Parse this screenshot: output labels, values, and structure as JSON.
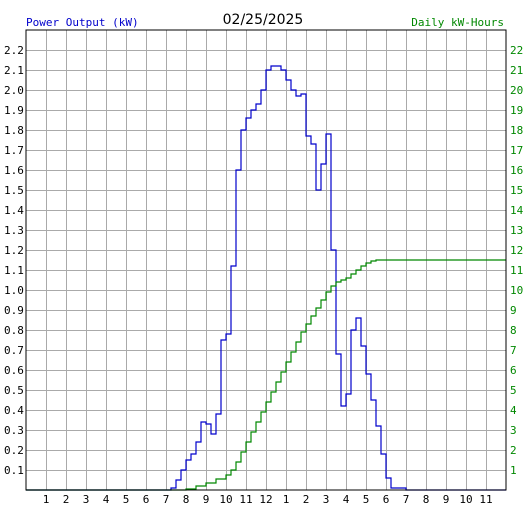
{
  "chart_data": {
    "type": "line",
    "title": "02/25/2025",
    "left_axis_label": "Power Output (kW)",
    "right_axis_label": "Daily kW-Hours",
    "x_tick_labels": [
      "1",
      "2",
      "3",
      "4",
      "5",
      "6",
      "7",
      "8",
      "9",
      "10",
      "11",
      "12",
      "1",
      "2",
      "3",
      "4",
      "5",
      "6",
      "7",
      "8",
      "9",
      "10",
      "11"
    ],
    "y_left_ticks": [
      "0.1",
      "0.2",
      "0.3",
      "0.4",
      "0.5",
      "0.6",
      "0.7",
      "0.8",
      "0.9",
      "1.0",
      "1.1",
      "1.2",
      "1.3",
      "1.4",
      "1.5",
      "1.6",
      "1.7",
      "1.8",
      "1.9",
      "2.0",
      "2.1",
      "2.2"
    ],
    "y_right_ticks": [
      "1",
      "2",
      "3",
      "4",
      "5",
      "6",
      "7",
      "8",
      "9",
      "10",
      "11",
      "12",
      "13",
      "14",
      "15",
      "16",
      "17",
      "18",
      "19",
      "20",
      "21",
      "22"
    ],
    "x_range_hours": [
      0,
      24
    ],
    "y_left_range": [
      0,
      2.3
    ],
    "y_right_range": [
      0,
      23
    ],
    "grid": true,
    "colors": {
      "power": "#0000cc",
      "energy": "#008800",
      "left_label": "#0000cc",
      "right_label": "#008800",
      "grid": "#aaaaaa"
    },
    "series": [
      {
        "key": "power_kw",
        "axis": "left",
        "step": true,
        "points": [
          [
            0,
            0
          ],
          [
            7.0,
            0
          ],
          [
            7.25,
            0.01
          ],
          [
            7.5,
            0.05
          ],
          [
            7.75,
            0.1
          ],
          [
            8.0,
            0.15
          ],
          [
            8.25,
            0.18
          ],
          [
            8.5,
            0.24
          ],
          [
            8.75,
            0.34
          ],
          [
            9.0,
            0.33
          ],
          [
            9.25,
            0.28
          ],
          [
            9.5,
            0.38
          ],
          [
            9.75,
            0.75
          ],
          [
            10.0,
            0.78
          ],
          [
            10.25,
            1.12
          ],
          [
            10.5,
            1.6
          ],
          [
            10.75,
            1.8
          ],
          [
            11.0,
            1.86
          ],
          [
            11.25,
            1.9
          ],
          [
            11.5,
            1.93
          ],
          [
            11.75,
            2.0
          ],
          [
            12.0,
            2.1
          ],
          [
            12.25,
            2.12
          ],
          [
            12.5,
            2.12
          ],
          [
            12.75,
            2.1
          ],
          [
            13.0,
            2.05
          ],
          [
            13.25,
            2.0
          ],
          [
            13.5,
            1.97
          ],
          [
            13.75,
            1.98
          ],
          [
            14.0,
            1.77
          ],
          [
            14.25,
            1.73
          ],
          [
            14.5,
            1.5
          ],
          [
            14.75,
            1.63
          ],
          [
            15.0,
            1.78
          ],
          [
            15.25,
            1.2
          ],
          [
            15.5,
            0.68
          ],
          [
            15.75,
            0.42
          ],
          [
            16.0,
            0.48
          ],
          [
            16.25,
            0.8
          ],
          [
            16.5,
            0.86
          ],
          [
            16.75,
            0.72
          ],
          [
            17.0,
            0.58
          ],
          [
            17.25,
            0.45
          ],
          [
            17.5,
            0.32
          ],
          [
            17.75,
            0.18
          ],
          [
            18.0,
            0.06
          ],
          [
            18.25,
            0.01
          ],
          [
            18.75,
            0.01
          ],
          [
            19.0,
            0
          ],
          [
            24.0,
            0
          ]
        ]
      },
      {
        "key": "energy_kwh",
        "axis": "right",
        "step": true,
        "points": [
          [
            0,
            0
          ],
          [
            7.5,
            0
          ],
          [
            8.0,
            0.05
          ],
          [
            8.5,
            0.2
          ],
          [
            9.0,
            0.35
          ],
          [
            9.5,
            0.55
          ],
          [
            10.0,
            0.75
          ],
          [
            10.25,
            1.0
          ],
          [
            10.5,
            1.4
          ],
          [
            10.75,
            1.9
          ],
          [
            11.0,
            2.4
          ],
          [
            11.25,
            2.9
          ],
          [
            11.5,
            3.4
          ],
          [
            11.75,
            3.9
          ],
          [
            12.0,
            4.4
          ],
          [
            12.25,
            4.9
          ],
          [
            12.5,
            5.4
          ],
          [
            12.75,
            5.9
          ],
          [
            13.0,
            6.4
          ],
          [
            13.25,
            6.9
          ],
          [
            13.5,
            7.4
          ],
          [
            13.75,
            7.9
          ],
          [
            14.0,
            8.3
          ],
          [
            14.25,
            8.7
          ],
          [
            14.5,
            9.1
          ],
          [
            14.75,
            9.5
          ],
          [
            15.0,
            9.9
          ],
          [
            15.25,
            10.2
          ],
          [
            15.5,
            10.4
          ],
          [
            15.75,
            10.5
          ],
          [
            16.0,
            10.6
          ],
          [
            16.25,
            10.8
          ],
          [
            16.5,
            11.0
          ],
          [
            16.75,
            11.2
          ],
          [
            17.0,
            11.35
          ],
          [
            17.25,
            11.45
          ],
          [
            17.5,
            11.5
          ],
          [
            24.0,
            11.5
          ]
        ]
      }
    ]
  }
}
